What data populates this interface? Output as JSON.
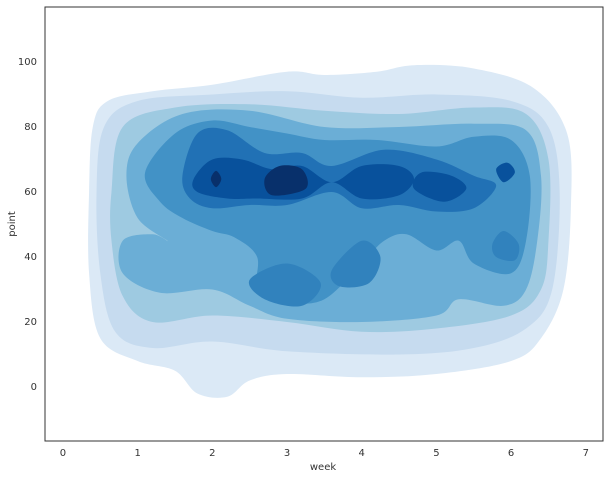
{
  "chart_data": {
    "type": "contour",
    "xlabel": "week",
    "ylabel": "point",
    "xlim": [
      -0.24,
      7.23
    ],
    "ylim": [
      -16.6,
      116.9
    ],
    "xticks": [
      0,
      1,
      2,
      3,
      4,
      5,
      6,
      7
    ],
    "yticks": [
      0,
      20,
      40,
      60,
      80,
      100
    ],
    "contours": [
      {
        "color": "#dbe9f6",
        "x": [
          0.35,
          0.4,
          0.6,
          1.2,
          2,
          3,
          3.5,
          4.2,
          4.7,
          5.5,
          6.3,
          6.75,
          6.8,
          6.7,
          6.4,
          6,
          5,
          4,
          3,
          2.5,
          2.2,
          1.8,
          1.5,
          1,
          0.5,
          0.35
        ],
        "y": [
          60,
          80,
          88,
          91,
          93,
          97,
          96,
          97,
          99,
          98,
          92,
          78,
          55,
          30,
          15,
          8,
          4,
          3,
          4,
          2,
          -3,
          -2,
          5,
          8,
          15,
          35
        ]
      },
      {
        "color": "#c6dbef",
        "x": [
          0.45,
          0.55,
          1,
          2,
          3,
          4,
          5,
          6,
          6.5,
          6.65,
          6.55,
          6.2,
          5.5,
          4.5,
          3,
          2,
          1.2,
          0.7,
          0.5
        ],
        "y": [
          60,
          80,
          88,
          90,
          91,
          89,
          90,
          88,
          80,
          60,
          30,
          18,
          12,
          10,
          11,
          14,
          12,
          17,
          35
        ]
      },
      {
        "color": "#9ecae1",
        "x": [
          0.65,
          0.8,
          1.5,
          2.5,
          3.5,
          4.5,
          5.5,
          6.2,
          6.5,
          6.5,
          6.4,
          6,
          5,
          4,
          3,
          2,
          1.2,
          0.8,
          0.65
        ],
        "y": [
          60,
          80,
          86,
          87,
          85,
          84,
          86,
          84,
          70,
          45,
          30,
          22,
          18,
          17,
          20,
          22,
          20,
          28,
          45
        ]
      },
      {
        "color": "#6baed6",
        "x": [
          0.85,
          1,
          1.6,
          2.5,
          3.5,
          4.5,
          5.5,
          6.2,
          6.4,
          6.35,
          6.2,
          5.9,
          5.3,
          5,
          4,
          3,
          2.5,
          2,
          1.3,
          0.8,
          0.8,
          1.2,
          1.4,
          1
        ],
        "y": [
          65,
          75,
          84,
          85,
          80,
          80,
          81,
          79,
          65,
          45,
          30,
          25,
          27,
          22,
          20,
          21,
          25,
          30,
          29,
          35,
          45,
          47,
          45,
          52
        ]
      },
      {
        "color": "#4292c6",
        "x": [
          1.1,
          1.5,
          2,
          2.5,
          3,
          3.5,
          4.2,
          5,
          5.5,
          6,
          6.25,
          6.2,
          6,
          5.5,
          5.3,
          5,
          4.6,
          4.3,
          4,
          3.5,
          3,
          2.6,
          2.6,
          2.3,
          2,
          1.6,
          1.3
        ],
        "y": [
          66,
          78,
          82,
          80,
          78,
          76,
          76,
          74,
          77,
          76,
          65,
          45,
          35,
          38,
          45,
          42,
          47,
          45,
          38,
          27,
          26,
          29,
          40,
          46,
          48,
          52,
          57
        ]
      },
      {
        "color": "#3182bd",
        "x": [
          2.5,
          3,
          3.45,
          3.2,
          2.7
        ],
        "y": [
          33,
          38,
          32,
          25,
          27
        ]
      },
      {
        "color": "#3182bd",
        "x": [
          3.6,
          4,
          4.25,
          4.1,
          3.7
        ],
        "y": [
          36,
          45,
          40,
          32,
          31
        ]
      },
      {
        "color": "#3182bd",
        "x": [
          5.75,
          5.9,
          6.1,
          6.05,
          5.8
        ],
        "y": [
          44,
          48,
          44,
          39,
          40
        ]
      },
      {
        "color": "#2171b5",
        "x": [
          1.6,
          1.8,
          2.2,
          2.7,
          3.2,
          3.6,
          4.3,
          5,
          5.5,
          5.8,
          5.5,
          5,
          4.5,
          4,
          3.6,
          3,
          2.5,
          2,
          1.7
        ],
        "y": [
          65,
          78,
          79,
          72,
          72,
          68,
          73,
          70,
          65,
          62,
          55,
          54,
          56,
          55,
          60,
          56,
          56,
          55,
          58
        ]
      },
      {
        "color": "#08519c",
        "x": [
          1.75,
          2,
          2.4,
          2.8,
          3.2,
          3.6,
          4,
          4.5,
          4.7,
          4.5,
          4,
          3.6,
          3.2,
          2.6,
          2.2,
          1.8
        ],
        "y": [
          64,
          70,
          70,
          67,
          68,
          63,
          68,
          68,
          64,
          59,
          58,
          63,
          58,
          58,
          58,
          60
        ]
      },
      {
        "color": "#08519c",
        "x": [
          4.8,
          5.2,
          5.4,
          5.1,
          4.7
        ],
        "y": [
          66,
          65,
          61,
          57,
          61
        ]
      },
      {
        "color": "#08519c",
        "x": [
          5.8,
          5.95,
          6.05,
          5.9
        ],
        "y": [
          67,
          69,
          66,
          63
        ]
      },
      {
        "color": "#08306b",
        "x": [
          2.9,
          3.2,
          3.25,
          2.8,
          2.7
        ],
        "y": [
          68,
          67,
          61,
          59,
          64
        ]
      },
      {
        "color": "#08306b",
        "x": [
          1.98,
          2.05,
          2.12,
          2.05
        ],
        "y": [
          64,
          66.5,
          64,
          61.5
        ]
      }
    ]
  }
}
